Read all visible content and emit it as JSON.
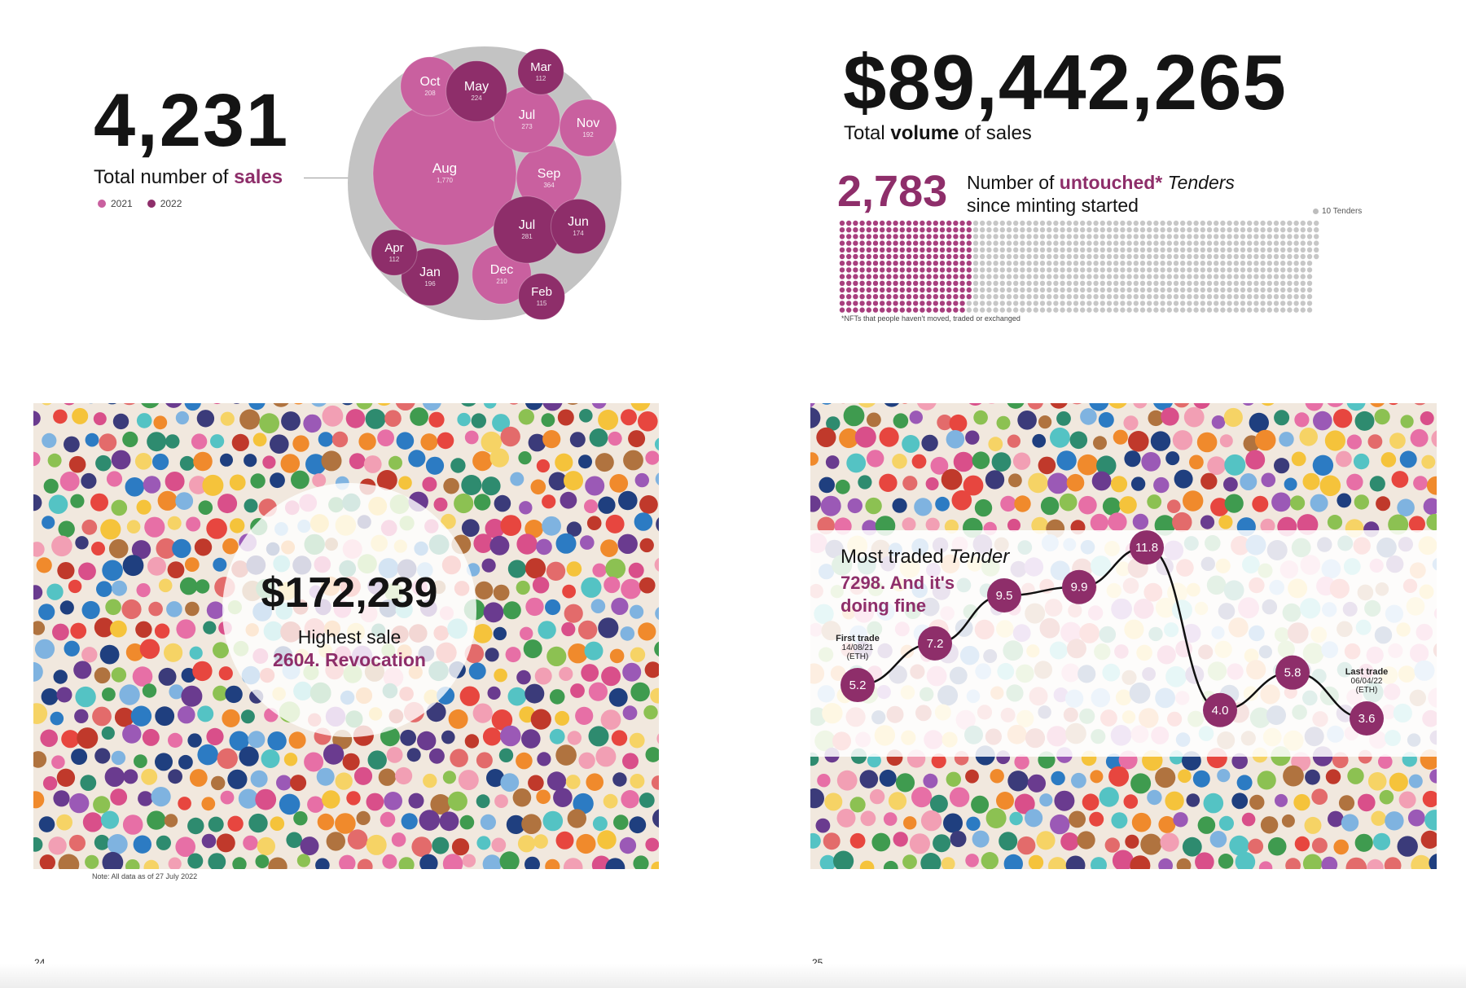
{
  "colors": {
    "y2021": "#c9609f",
    "y2022": "#8e2e6a",
    "outer_circle": "#c3c3c3",
    "untouched_dot": "#a83f7e",
    "other_dot": "#c7c7c7",
    "trade_dot": "#8e2e6a"
  },
  "sales": {
    "value": "4,231",
    "caption_pre": "Total number of ",
    "caption_bold": "sales",
    "legend": [
      {
        "label": "2021",
        "color": "#c9609f"
      },
      {
        "label": "2022",
        "color": "#8e2e6a"
      }
    ]
  },
  "volume": {
    "value": "$89,442,265",
    "caption_pre": "Total ",
    "caption_bold": "volume",
    "caption_post": " of sales"
  },
  "untouched": {
    "value": "2,783",
    "line1_pre": "Number of ",
    "line1_bold": "untouched*",
    "line1_italic": " Tenders",
    "line2": "since minting started",
    "dot_legend": "10 Tenders",
    "footnote": "*NFTs that people haven't moved, traded or exchanged"
  },
  "highest": {
    "value": "$172,239",
    "label": "Highest sale",
    "name": "2604. Revocation"
  },
  "most_traded": {
    "title_pre": "Most traded ",
    "title_italic": "Tender",
    "subtitle": "7298. And it's doing fine"
  },
  "note": "Note: All data as of 27 July 2022",
  "pages": {
    "left": "24",
    "right": "25"
  },
  "chart_data": [
    {
      "type": "bubble",
      "title": "Total number of sales",
      "total": 4231,
      "series": [
        {
          "name": "2021",
          "points": [
            {
              "label": "Aug",
              "value": 1770
            },
            {
              "label": "Sep",
              "value": 364
            },
            {
              "label": "Jul",
              "value": 273
            },
            {
              "label": "Oct",
              "value": 208
            },
            {
              "label": "Nov",
              "value": 192
            },
            {
              "label": "Dec",
              "value": 210
            }
          ]
        },
        {
          "name": "2022",
          "points": [
            {
              "label": "Jul",
              "value": 281
            },
            {
              "label": "May",
              "value": 224
            },
            {
              "label": "Jan",
              "value": 196
            },
            {
              "label": "Jun",
              "value": 174
            },
            {
              "label": "Feb",
              "value": 115
            },
            {
              "label": "Mar",
              "value": 112
            },
            {
              "label": "Apr",
              "value": 112
            }
          ]
        }
      ]
    },
    {
      "type": "waffle",
      "title": "Number of untouched* Tenders since minting started",
      "unit": "10 Tenders",
      "untouched": 2783,
      "total": 10000
    },
    {
      "type": "line",
      "title": "Most traded Tender",
      "ylabel": "ETH",
      "values": [
        5.2,
        7.2,
        9.5,
        9.9,
        11.8,
        4.0,
        5.8,
        3.6
      ],
      "annotations": [
        {
          "index": 0,
          "lines": [
            "First trade",
            "14/08/21",
            "(ETH)"
          ]
        },
        {
          "index": 7,
          "lines": [
            "Last trade",
            "06/04/22",
            "(ETH)"
          ]
        }
      ]
    }
  ]
}
